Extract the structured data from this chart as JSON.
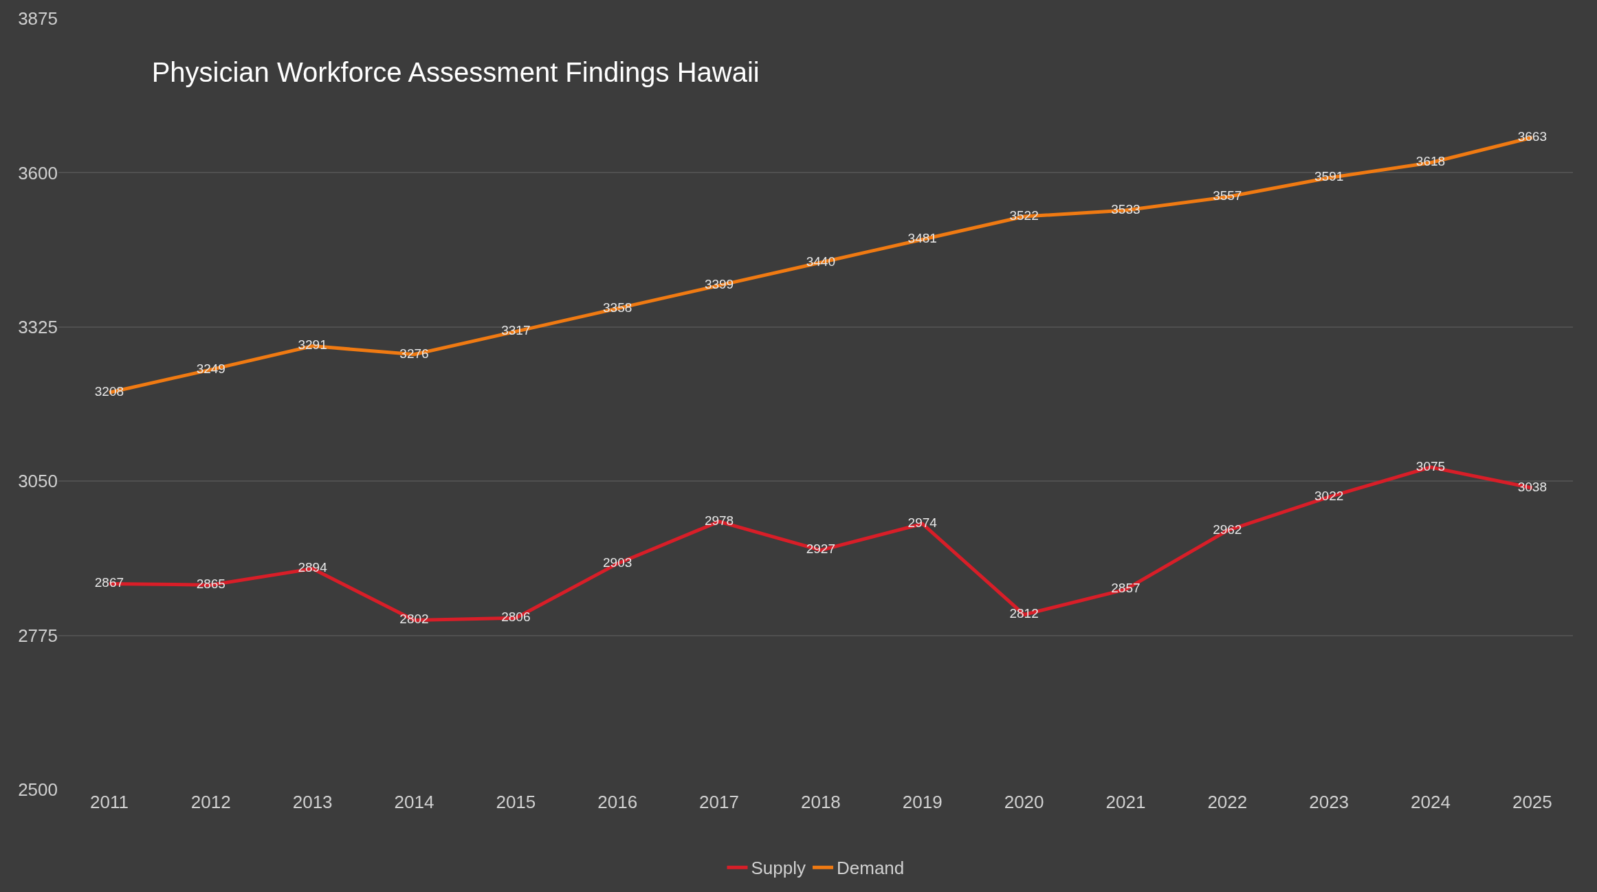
{
  "chart_data": {
    "type": "line",
    "title": "Physician Workforce Assessment Findings Hawaii",
    "categories": [
      "2011",
      "2012",
      "2013",
      "2014",
      "2015",
      "2016",
      "2017",
      "2018",
      "2019",
      "2020",
      "2021",
      "2022",
      "2023",
      "2024",
      "2025"
    ],
    "series": [
      {
        "name": "Supply",
        "color": "#d81e28",
        "values": [
          2867,
          2865,
          2894,
          2802,
          2806,
          2903,
          2978,
          2927,
          2974,
          2812,
          2857,
          2962,
          3022,
          3075,
          3038
        ]
      },
      {
        "name": "Demand",
        "color": "#f07a12",
        "values": [
          3208,
          3249,
          3291,
          3276,
          3317,
          3358,
          3399,
          3440,
          3481,
          3522,
          3533,
          3557,
          3591,
          3618,
          3663
        ]
      }
    ],
    "ylim": [
      2500,
      3875
    ],
    "yticks": [
      2500,
      2775,
      3050,
      3325,
      3600,
      3875
    ],
    "grid": "y",
    "legend": "bottom",
    "data_labels": true,
    "marker": "none",
    "line_style": "solid"
  }
}
